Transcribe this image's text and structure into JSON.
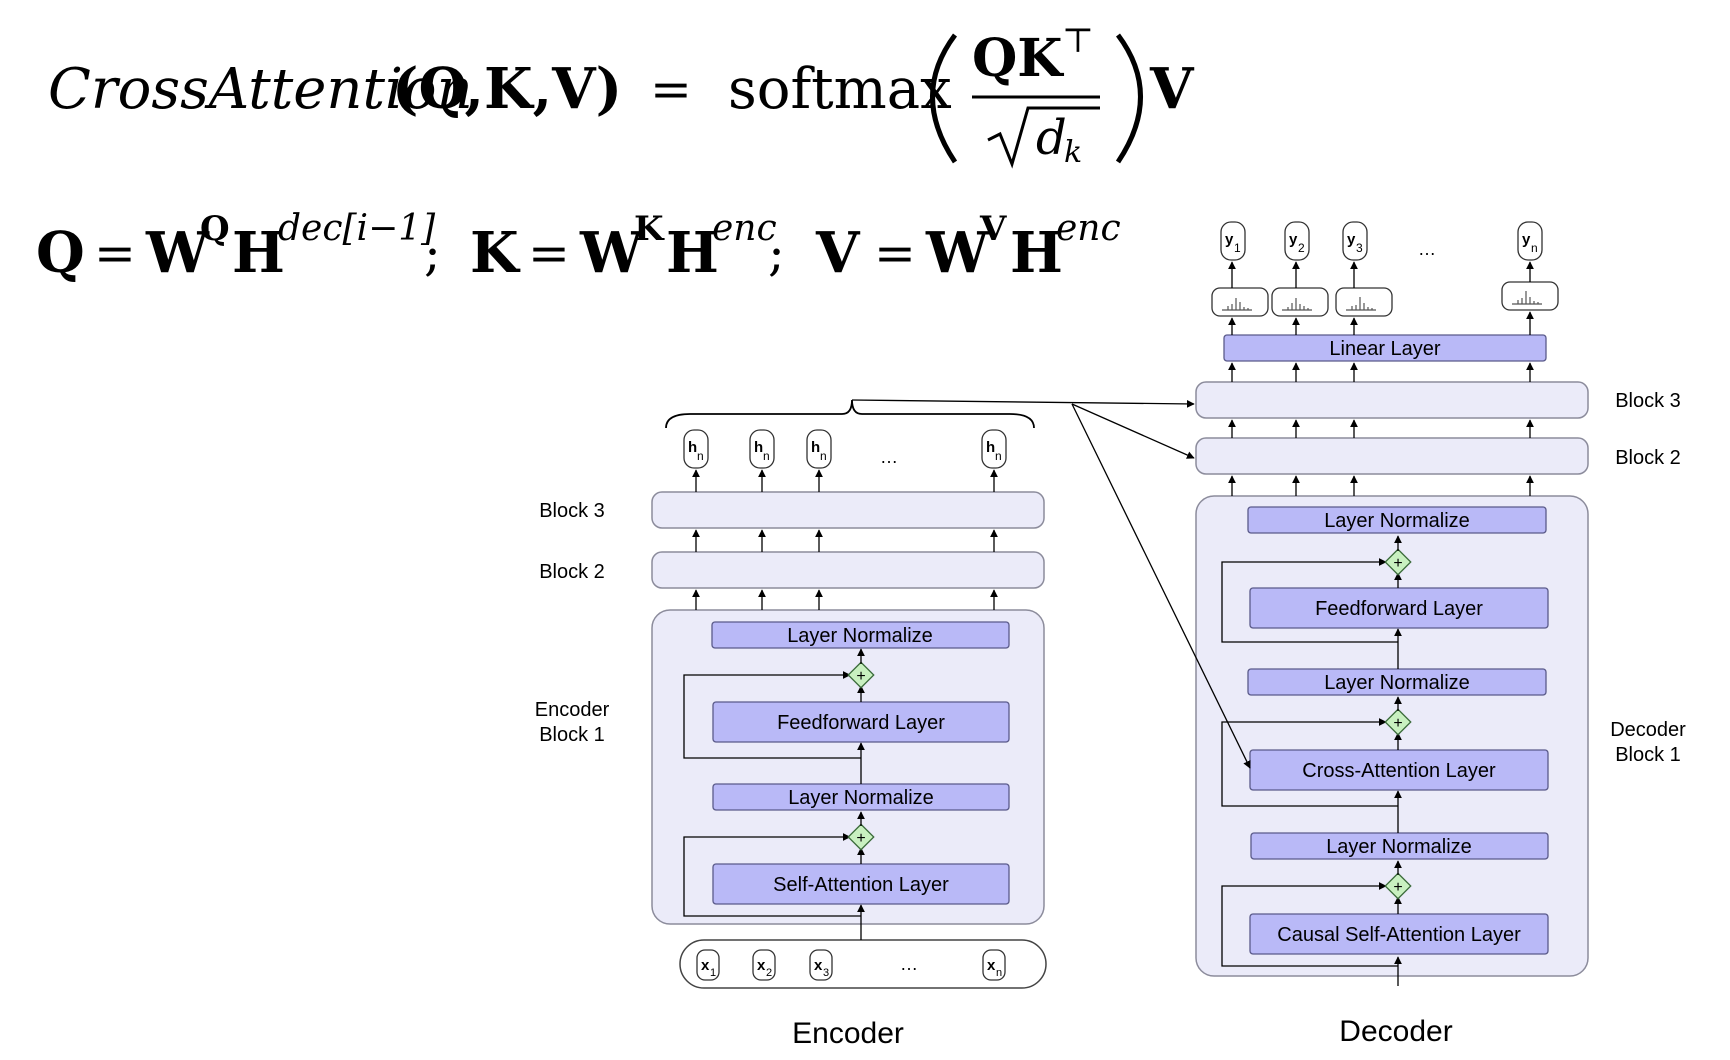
{
  "equation1": {
    "lhs_name": "CrossAttention",
    "lhs_args": "(Q,K,V)",
    "equals": "=",
    "softmax": "softmax",
    "numerator": "QK",
    "numerator_sup": "⊤",
    "denominator_var": "d",
    "denominator_sub": "k",
    "trailing": "V"
  },
  "equation2": {
    "q_lhs": "Q",
    "q_w": "W",
    "q_w_sup": "Q",
    "q_h": "H",
    "q_h_sup": "dec[i−1]",
    "k_lhs": "K",
    "k_w": "W",
    "k_w_sup": "K",
    "k_h": "H",
    "k_h_sup": "enc",
    "v_lhs": "V",
    "v_w": "W",
    "v_w_sup": "V",
    "v_h": "H",
    "v_h_sup": "enc",
    "equals": "=",
    "separator": ";"
  },
  "encoder": {
    "caption": "Encoder",
    "block3_label": "Block 3",
    "block2_label": "Block 2",
    "block1_label_line1": "Encoder",
    "block1_label_line2": "Block 1",
    "layer_norm_top": "Layer Normalize",
    "feedforward": "Feedforward Layer",
    "layer_norm_bottom": "Layer Normalize",
    "self_attention": "Self-Attention Layer",
    "outputs": [
      {
        "base": "h",
        "sub": "n"
      },
      {
        "base": "h",
        "sub": "n"
      },
      {
        "base": "h",
        "sub": "n"
      },
      {
        "base": "h",
        "sub": "n"
      }
    ],
    "inputs": [
      {
        "base": "x",
        "sub": "1"
      },
      {
        "base": "x",
        "sub": "2"
      },
      {
        "base": "x",
        "sub": "3"
      },
      {
        "base": "x",
        "sub": "n"
      }
    ],
    "ellipsis": "…"
  },
  "decoder": {
    "caption": "Decoder",
    "block3_label": "Block 3",
    "block2_label": "Block 2",
    "block1_label_line1": "Decoder",
    "block1_label_line2": "Block 1",
    "linear": "Linear Layer",
    "layer_norm_1": "Layer Normalize",
    "feedforward": "Feedforward Layer",
    "layer_norm_2": "Layer Normalize",
    "cross_attention": "Cross-Attention Layer",
    "layer_norm_3": "Layer Normalize",
    "causal_self_attention": "Causal Self-Attention Layer",
    "outputs": [
      {
        "base": "y",
        "sub": "1"
      },
      {
        "base": "y",
        "sub": "2"
      },
      {
        "base": "y",
        "sub": "3"
      },
      {
        "base": "y",
        "sub": "n"
      }
    ],
    "ellipsis": "…",
    "add_symbol": "+"
  },
  "colors": {
    "layer_fill": "#b9b9f7",
    "layer_stroke": "#5a5a8a",
    "block_fill": "#ebebf9",
    "block_stroke": "#8c8c9c",
    "add_fill": "#c8f0c0",
    "add_stroke": "#3a6a3a"
  }
}
